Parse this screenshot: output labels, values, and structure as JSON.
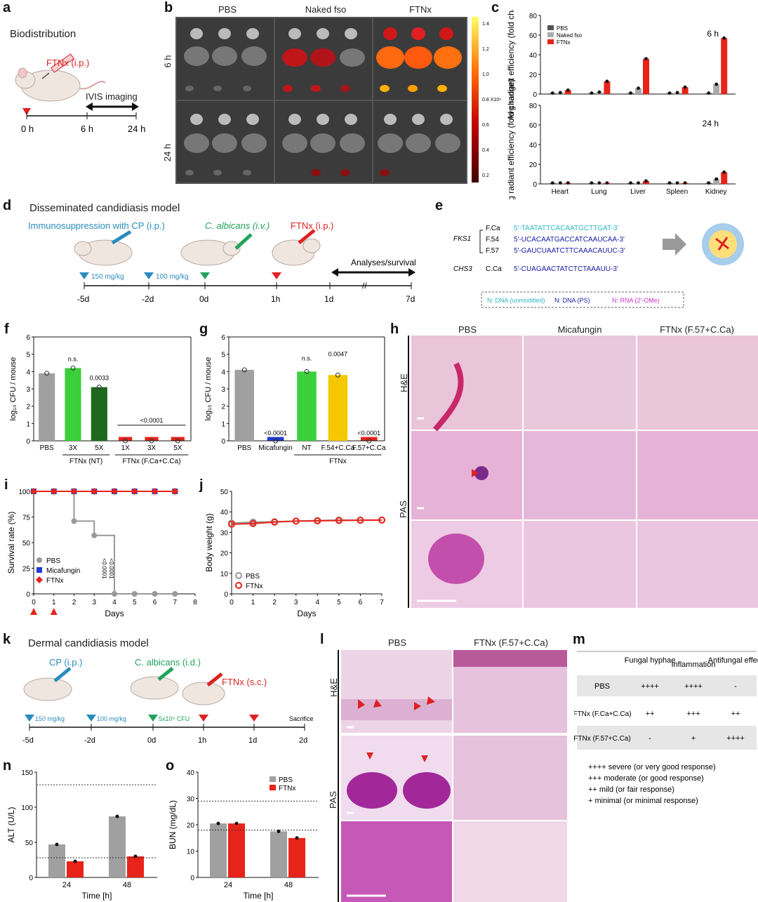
{
  "panels": {
    "a": {
      "letter": "a",
      "title": "Biodistribution",
      "drug": "FTNx (i.p.)",
      "imaging": "IVIS imaging",
      "times": [
        "0 h",
        "6 h",
        "24 h"
      ]
    },
    "b": {
      "letter": "b",
      "cols": [
        "PBS",
        "Naked fso",
        "FTNx"
      ],
      "rows": [
        "6 h",
        "24 h"
      ],
      "colorbar_ticks": [
        "1.4",
        "1.2",
        "1.0",
        "0.8 X10⁹",
        "0.6",
        "0.4",
        "0.2"
      ]
    },
    "c": {
      "letter": "c"
    },
    "d": {
      "letter": "d",
      "title": "Disseminated candidiasis model",
      "step1": "Immunosuppression with CP (i.p.)",
      "step2": "C. albicans (i.v.)",
      "step3": "FTNx (i.p.)",
      "analyses": "Analyses/survival",
      "dose1": "150 mg/kg",
      "dose2": "100 mg/kg",
      "ticks": [
        "-5d",
        "-2d",
        "0d",
        "1h",
        "1d",
        "7d"
      ]
    },
    "e": {
      "letter": "e",
      "gene1": "FKS1",
      "gene2": "CHS3",
      "rows": [
        {
          "name": "F.Ca",
          "seq": "5'-TAATATTCACAATGCTTGAT-3'"
        },
        {
          "name": "F.54",
          "seq": "5'-UCACAATGACCATCAAUCAA-3'"
        },
        {
          "name": "F.57",
          "seq": "5'-GAUCUAATCTTCAAACAUUC-3'"
        },
        {
          "name": "C.Ca",
          "seq": "5'-CUAGAACTATCTCTAAAUU-3'"
        }
      ],
      "legend": [
        "N: DNA (unmodified)",
        "N: DNA (PS)",
        "N: RNA (2'-OMe)"
      ],
      "colors": {
        "dna": "#2bb7c4",
        "ps": "#1a1aa6",
        "rna": "#cc33cc"
      }
    },
    "h": {
      "letter": "h",
      "cols": [
        "PBS",
        "Micafungin",
        "FTNx (F.57+C.Ca)"
      ],
      "rows": [
        "H&E",
        "PAS"
      ]
    },
    "k": {
      "letter": "k",
      "title": "Dermal candidiasis model",
      "step1": "CP (i.p.)",
      "step2": "C. albicans (i.d.)",
      "step3": "FTNx (s.c.)",
      "dose1": "150 mg/kg",
      "dose2": "100 mg/kg",
      "dose3": "5x10⁵ CFU",
      "end": "Sacrifice",
      "ticks": [
        "-5d",
        "-2d",
        "0d",
        "1h",
        "1d",
        "2d"
      ]
    },
    "l": {
      "letter": "l",
      "cols": [
        "PBS",
        "FTNx (F.57+C.Ca)"
      ],
      "rows": [
        "H&E",
        "PAS"
      ]
    },
    "m": {
      "letter": "m",
      "headers": [
        "",
        "Fungal hyphae",
        "Inflammation",
        "Antifungal effect"
      ],
      "rows": [
        [
          "PBS",
          "++++",
          "++++",
          "-"
        ],
        [
          "FTNx (F.Ca+C.Ca)",
          "++",
          "+++",
          "++"
        ],
        [
          "FTNx (F.57+C.Ca)",
          "-",
          "+",
          "++++"
        ]
      ],
      "legend": [
        "++++ severe (or very good response)",
        "+++  moderate (or good response)",
        "++ mild (or fair response)",
        "+    minimal (or minimal response)"
      ]
    }
  },
  "chart_data": [
    {
      "id": "c-6h",
      "type": "bar",
      "ylabel": "Avg radiant efficiency (fold change)",
      "categories": [
        "Heart",
        "Lung",
        "Liver",
        "Spleen",
        "Kidney"
      ],
      "annotation": "6 h",
      "ylim": [
        0,
        80
      ],
      "yticks": [
        0,
        20,
        40,
        60,
        80
      ],
      "series": [
        {
          "name": "PBS",
          "color": "#555555",
          "values": [
            1,
            1,
            1,
            1,
            1
          ]
        },
        {
          "name": "Naked fso",
          "color": "#aaaaaa",
          "values": [
            1.5,
            2,
            6,
            1.5,
            10
          ]
        },
        {
          "name": "FTNx",
          "color": "#e8231a",
          "values": [
            4,
            13,
            36,
            7,
            57
          ]
        }
      ]
    },
    {
      "id": "c-24h",
      "type": "bar",
      "ylabel": "Avg radiant efficiency (fold change)",
      "categories": [
        "Heart",
        "Lung",
        "Liver",
        "Spleen",
        "Kidney"
      ],
      "annotation": "24 h",
      "ylim": [
        0,
        80
      ],
      "yticks": [
        0,
        20,
        40,
        60,
        80
      ],
      "series": [
        {
          "name": "PBS",
          "color": "#555555",
          "values": [
            1,
            1,
            1,
            1,
            1
          ]
        },
        {
          "name": "Naked fso",
          "color": "#aaaaaa",
          "values": [
            1,
            1,
            1,
            1,
            5
          ]
        },
        {
          "name": "FTNx",
          "color": "#e8231a",
          "values": [
            1,
            1,
            3,
            1,
            12
          ]
        }
      ]
    },
    {
      "id": "f",
      "type": "bar",
      "ylabel": "log₁₀ CFU / mouse",
      "ylim": [
        0,
        6
      ],
      "yticks": [
        0,
        1,
        2,
        3,
        4,
        5,
        6
      ],
      "categories": [
        "PBS",
        "3X",
        "5X",
        "1X",
        "3X",
        "5X"
      ],
      "groups": [
        "FTNx (NT)",
        "FTNx (F.Ca+C.Ca)"
      ],
      "values": [
        3.9,
        4.2,
        3.1,
        0,
        0,
        0
      ],
      "colors": [
        "#a0a0a0",
        "#3ccf3c",
        "#1d6a1d",
        "#e8231a",
        "#e8231a",
        "#e8231a"
      ],
      "annotations": [
        "n.s.",
        "0.0033",
        "<0.0001"
      ]
    },
    {
      "id": "g",
      "type": "bar",
      "ylabel": "log₁₀ CFU / mouse",
      "ylim": [
        0,
        6
      ],
      "yticks": [
        0,
        1,
        2,
        3,
        4,
        5,
        6
      ],
      "categories": [
        "PBS",
        "Micafungin",
        "NT",
        "F.54+C.Ca",
        "F.57+C.Ca"
      ],
      "group": "FTNx",
      "values": [
        4.1,
        0,
        4.0,
        3.8,
        0
      ],
      "colors": [
        "#a0a0a0",
        "#1f3bd1",
        "#3ccf3c",
        "#f5c800",
        "#e8231a"
      ],
      "annotations": [
        "<0.0001",
        "n.s.",
        "0.0047",
        "<0.0001"
      ]
    },
    {
      "id": "i",
      "type": "line",
      "xlabel": "Days",
      "ylabel": "Survival rate (%)",
      "xlim": [
        0,
        8
      ],
      "ylim": [
        0,
        100
      ],
      "xticks": [
        0,
        1,
        2,
        3,
        4,
        5,
        6,
        7,
        8
      ],
      "yticks": [
        0,
        25,
        50,
        75,
        100
      ],
      "series": [
        {
          "name": "PBS",
          "color": "#999999",
          "x": [
            0,
            1,
            2,
            3,
            4,
            5,
            6,
            7
          ],
          "y": [
            100,
            100,
            71,
            57,
            0,
            0,
            0,
            0
          ]
        },
        {
          "name": "Micafungin",
          "color": "#1f3bd1",
          "x": [
            0,
            1,
            2,
            3,
            4,
            5,
            6,
            7
          ],
          "y": [
            100,
            100,
            100,
            100,
            100,
            100,
            100,
            100
          ]
        },
        {
          "name": "FTNx",
          "color": "#e8231a",
          "x": [
            0,
            1,
            2,
            3,
            4,
            5,
            6,
            7
          ],
          "y": [
            100,
            100,
            100,
            100,
            100,
            100,
            100,
            100
          ]
        }
      ],
      "pvalues": [
        "<0.0001",
        "<0.0001"
      ]
    },
    {
      "id": "j",
      "type": "line",
      "xlabel": "Days",
      "ylabel": "Body weight (g)",
      "xlim": [
        0,
        7
      ],
      "ylim": [
        0,
        50
      ],
      "xticks": [
        0,
        1,
        2,
        3,
        4,
        5,
        6,
        7
      ],
      "yticks": [
        0,
        10,
        20,
        30,
        40,
        50
      ],
      "series": [
        {
          "name": "PBS",
          "color": "#999999",
          "x": [
            0,
            1,
            2,
            3,
            4,
            5,
            6,
            7
          ],
          "y": [
            34.5,
            35,
            35.2,
            35.5,
            35.8,
            36,
            36,
            36
          ]
        },
        {
          "name": "FTNx",
          "color": "#e8231a",
          "x": [
            0,
            1,
            2,
            3,
            4,
            5,
            6,
            7
          ],
          "y": [
            34,
            34.3,
            35,
            35.5,
            35.6,
            35.8,
            35.9,
            36
          ]
        }
      ]
    },
    {
      "id": "n",
      "type": "bar",
      "xlabel": "Time [h]",
      "ylabel": "ALT (U/L)",
      "ylim": [
        0,
        150
      ],
      "yticks": [
        0,
        50,
        100,
        150
      ],
      "categories": [
        "24",
        "48"
      ],
      "series": [
        {
          "name": "PBS",
          "color": "#a0a0a0",
          "values": [
            47,
            87
          ]
        },
        {
          "name": "FTNx",
          "color": "#e8231a",
          "values": [
            23,
            30
          ]
        }
      ],
      "reference_lines": [
        28,
        132
      ]
    },
    {
      "id": "o",
      "type": "bar",
      "xlabel": "Time [h]",
      "ylabel": "BUN (mg/dL)",
      "ylim": [
        0,
        40
      ],
      "yticks": [
        0,
        10,
        20,
        30,
        40
      ],
      "categories": [
        "24",
        "48"
      ],
      "series": [
        {
          "name": "PBS",
          "color": "#a0a0a0",
          "values": [
            20.5,
            17.5
          ]
        },
        {
          "name": "FTNx",
          "color": "#e8231a",
          "values": [
            20.5,
            15
          ]
        }
      ],
      "reference_lines": [
        18,
        29
      ]
    }
  ]
}
